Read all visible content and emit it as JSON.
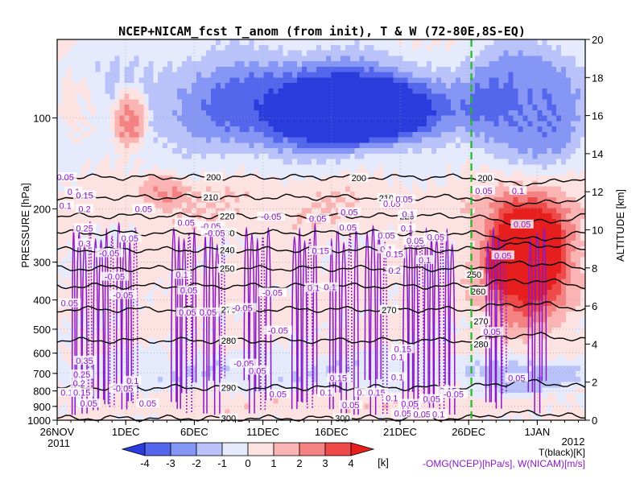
{
  "chart_data": {
    "type": "heatmap",
    "title": "NCEP+NICAM_fcst T_anom (from init), T & W  (72-80E,8S-EQ)",
    "x_axis": {
      "ticks": [
        "26NOV",
        "1DEC",
        "6DEC",
        "11DEC",
        "16DEC",
        "21DEC",
        "26DEC",
        "1JAN"
      ],
      "year_start": "2011",
      "year_end": "2012",
      "range": [
        "2011-11-26",
        "2012-01-03"
      ]
    },
    "y_left": {
      "label": "PRESSURE [hPa]",
      "ticks": [
        100,
        200,
        300,
        400,
        500,
        600,
        700,
        800,
        900,
        1000
      ],
      "scale": "log",
      "range": [
        1000,
        55
      ]
    },
    "y_right": {
      "label": "ALTITUDE [km]",
      "ticks": [
        0,
        2,
        4,
        6,
        8,
        10,
        12,
        14,
        16,
        18,
        20
      ],
      "range": [
        0,
        20
      ]
    },
    "forecast_start": "26DEC",
    "colorbar": {
      "levels": [
        -4,
        -3,
        -2,
        -1,
        0,
        1,
        2,
        3,
        4
      ],
      "unit": "[k]",
      "colors": [
        "#2a3cdc",
        "#5366ec",
        "#8696f4",
        "#b9c3fa",
        "#e6eafd",
        "#fde2e2",
        "#fab4b4",
        "#f58282",
        "#ee4a4a",
        "#e61e1e"
      ]
    },
    "legend": {
      "black": "T(black)[K]",
      "purple": "-OMG(NCEP)[hPa/s], W(NICAM)[m/s]"
    },
    "temperature_contours": [
      {
        "label": "200",
        "level_hPa": 157
      },
      {
        "label": "210",
        "level_hPa": 183
      },
      {
        "label": "220",
        "level_hPa": 211
      },
      {
        "label": "230",
        "level_hPa": 240
      },
      {
        "label": "240",
        "level_hPa": 273
      },
      {
        "label": "250",
        "level_hPa": 315
      },
      {
        "label": "260",
        "level_hPa": 360
      },
      {
        "label": "270",
        "level_hPa": 430
      },
      {
        "label": "280",
        "level_hPa": 545
      },
      {
        "label": "290",
        "level_hPa": 780
      },
      {
        "label": "300",
        "level_hPa": 985
      }
    ],
    "contour_labels": [
      {
        "text": "200",
        "x": 11.4,
        "p": 157
      },
      {
        "text": "200",
        "x": 22.0,
        "p": 158
      },
      {
        "text": "200",
        "x": 31.2,
        "p": 158
      },
      {
        "text": "210",
        "x": 11.2,
        "p": 183
      },
      {
        "text": "210",
        "x": 24.0,
        "p": 184
      },
      {
        "text": "220",
        "x": 12.4,
        "p": 211
      },
      {
        "text": "220",
        "x": 25.5,
        "p": 211
      },
      {
        "text": "230",
        "x": 12.4,
        "p": 240
      },
      {
        "text": "240",
        "x": 12.4,
        "p": 273
      },
      {
        "text": "250",
        "x": 12.4,
        "p": 315
      },
      {
        "text": "250",
        "x": 30.4,
        "p": 330
      },
      {
        "text": "260",
        "x": 30.7,
        "p": 375
      },
      {
        "text": "270",
        "x": 12.5,
        "p": 430
      },
      {
        "text": "270",
        "x": 24.2,
        "p": 432
      },
      {
        "text": "270",
        "x": 30.9,
        "p": 470
      },
      {
        "text": "280",
        "x": 12.5,
        "p": 545
      },
      {
        "text": "280",
        "x": 30.9,
        "p": 560
      },
      {
        "text": "290",
        "x": 12.5,
        "p": 780
      },
      {
        "text": "300",
        "x": 12.5,
        "p": 985
      },
      {
        "text": "300",
        "x": 20.8,
        "p": 985
      }
    ],
    "anomaly_regions": [
      {
        "x0": 0,
        "x1": 30,
        "p0": 55,
        "p1": 140,
        "v": -1.5
      },
      {
        "x0": 10,
        "x1": 30,
        "p0": 65,
        "p1": 130,
        "v": -2.5
      },
      {
        "x0": 16,
        "x1": 27,
        "p0": 75,
        "p1": 120,
        "v": -3.5
      },
      {
        "x0": 4,
        "x1": 6.5,
        "p0": 80,
        "p1": 125,
        "v": 3.2
      },
      {
        "x0": 0,
        "x1": 3.5,
        "p0": 70,
        "p1": 120,
        "v": 1.2
      },
      {
        "x0": 0,
        "x1": 30,
        "p0": 160,
        "p1": 240,
        "v": 0.8
      },
      {
        "x0": 6,
        "x1": 9.5,
        "p0": 150,
        "p1": 200,
        "v": 1.6
      },
      {
        "x0": 30,
        "x1": 38.5,
        "p0": 55,
        "p1": 150,
        "v": -3.0
      },
      {
        "x0": 30,
        "x1": 38.5,
        "p0": 150,
        "p1": 550,
        "v": 2.5
      },
      {
        "x0": 31.5,
        "x1": 37,
        "p0": 190,
        "p1": 420,
        "v": 3.6
      },
      {
        "x0": 0,
        "x1": 30,
        "p0": 240,
        "p1": 600,
        "v": 0.4
      },
      {
        "x0": 0,
        "x1": 30,
        "p0": 600,
        "p1": 780,
        "v": -0.8
      },
      {
        "x0": 30,
        "x1": 38.5,
        "p0": 620,
        "p1": 820,
        "v": -1.6
      },
      {
        "x0": 0,
        "x1": 38.5,
        "p0": 820,
        "p1": 1000,
        "v": 0.6
      }
    ],
    "vertical_motion_columns": [
      {
        "x": 1.2,
        "w": 2.8
      },
      {
        "x": 4.5,
        "w": 1.2
      },
      {
        "x": 8.5,
        "w": 1.5
      },
      {
        "x": 10.8,
        "w": 1.3
      },
      {
        "x": 13.8,
        "w": 1.6
      },
      {
        "x": 17.3,
        "w": 1.5
      },
      {
        "x": 20.0,
        "w": 1.8
      },
      {
        "x": 22.6,
        "w": 1.3
      },
      {
        "x": 25.4,
        "w": 3.4
      },
      {
        "x": 31.4,
        "w": 1.2
      },
      {
        "x": 34.5,
        "w": 1.0
      }
    ],
    "vertical_motion_labels": [
      {
        "text": "0.05",
        "x": 0.6,
        "p": 157
      },
      {
        "text": "0.1",
        "x": 1.2,
        "p": 175
      },
      {
        "text": "0.15",
        "x": 2.0,
        "p": 180
      },
      {
        "text": "0.1",
        "x": 0.6,
        "p": 195
      },
      {
        "text": "0.2",
        "x": 2.0,
        "p": 200
      },
      {
        "text": "0.25",
        "x": 2.0,
        "p": 232
      },
      {
        "text": "0.3",
        "x": 2.0,
        "p": 260
      },
      {
        "text": "0.05",
        "x": 0.9,
        "p": 410
      },
      {
        "text": "0.35",
        "x": 2.0,
        "p": 635
      },
      {
        "text": "0.25",
        "x": 1.8,
        "p": 705
      },
      {
        "text": "0.2",
        "x": 1.6,
        "p": 755
      },
      {
        "text": "0.1",
        "x": 0.7,
        "p": 810
      },
      {
        "text": "0.15",
        "x": 1.8,
        "p": 810
      },
      {
        "text": "0.05",
        "x": 2.3,
        "p": 880
      },
      {
        "text": "-0.05",
        "x": 3.8,
        "p": 280
      },
      {
        "text": "-0.05",
        "x": 4.2,
        "p": 335
      },
      {
        "text": "-0.05",
        "x": 4.8,
        "p": 385
      },
      {
        "text": "-0.05",
        "x": 4.8,
        "p": 785
      },
      {
        "text": "0.1",
        "x": 5.5,
        "p": 740
      },
      {
        "text": "0.05",
        "x": 6.6,
        "p": 880
      },
      {
        "text": "0.05",
        "x": 6.3,
        "p": 200
      },
      {
        "text": "0.05",
        "x": 5.3,
        "p": 250
      },
      {
        "text": "0.05",
        "x": 9.4,
        "p": 222
      },
      {
        "text": "-0.05",
        "x": 11.2,
        "p": 228
      },
      {
        "text": "-0.05",
        "x": 11.5,
        "p": 240
      },
      {
        "text": "0.1",
        "x": 9.1,
        "p": 330
      },
      {
        "text": "0.05",
        "x": 9.6,
        "p": 372
      },
      {
        "text": "0.05",
        "x": 9.5,
        "p": 440
      },
      {
        "text": "0.05",
        "x": 11.0,
        "p": 440
      },
      {
        "text": "-0.05",
        "x": 13.5,
        "p": 425
      },
      {
        "text": "-0.05",
        "x": 15.6,
        "p": 212
      },
      {
        "text": "-0.05",
        "x": 15.7,
        "p": 378
      },
      {
        "text": "-0.05",
        "x": 16.1,
        "p": 505
      },
      {
        "text": "-0.05",
        "x": 13.6,
        "p": 650
      },
      {
        "text": "0.05",
        "x": 14.6,
        "p": 685
      },
      {
        "text": "0.05",
        "x": 16.1,
        "p": 820
      },
      {
        "text": "0.05",
        "x": 19.0,
        "p": 215
      },
      {
        "text": "0.1",
        "x": 18.7,
        "p": 365
      },
      {
        "text": "0.05",
        "x": 21.3,
        "p": 205
      },
      {
        "text": "0.05",
        "x": 21.2,
        "p": 230
      },
      {
        "text": "0.15",
        "x": 19.2,
        "p": 275
      },
      {
        "text": "0.15",
        "x": 20.5,
        "p": 725
      },
      {
        "text": "0.1",
        "x": 19.6,
        "p": 810
      },
      {
        "text": "0.05",
        "x": 21.4,
        "p": 890
      },
      {
        "text": "0.1",
        "x": 22.3,
        "p": 810
      },
      {
        "text": "0.15",
        "x": 23.3,
        "p": 810
      },
      {
        "text": "0.1",
        "x": 24.4,
        "p": 845
      },
      {
        "text": "0.1",
        "x": 24.0,
        "p": 272
      },
      {
        "text": "0.15",
        "x": 24.6,
        "p": 282
      },
      {
        "text": "0.05",
        "x": 24.0,
        "p": 245
      },
      {
        "text": "0.2",
        "x": 24.6,
        "p": 320
      },
      {
        "text": "0.05",
        "x": 24.4,
        "p": 192
      },
      {
        "text": "0.05",
        "x": 25.3,
        "p": 186
      },
      {
        "text": "0.1",
        "x": 25.6,
        "p": 208
      },
      {
        "text": "0.1",
        "x": 25.5,
        "p": 232
      },
      {
        "text": "0.15",
        "x": 26.2,
        "p": 260
      },
      {
        "text": "0.05",
        "x": 26.1,
        "p": 255
      },
      {
        "text": "0.1",
        "x": 26.8,
        "p": 295
      },
      {
        "text": "0.15",
        "x": 25.2,
        "p": 582
      },
      {
        "text": "0.1",
        "x": 24.8,
        "p": 618
      },
      {
        "text": "0.1",
        "x": 24.8,
        "p": 720
      },
      {
        "text": "0.05",
        "x": 27.6,
        "p": 248
      },
      {
        "text": "0.05",
        "x": 27.3,
        "p": 850
      },
      {
        "text": "0.05",
        "x": 25.7,
        "p": 882
      },
      {
        "text": "0.05",
        "x": 25.2,
        "p": 950
      },
      {
        "text": "0.05",
        "x": 26.6,
        "p": 955
      },
      {
        "text": "0.1",
        "x": 27.8,
        "p": 955
      },
      {
        "text": "0.15",
        "x": 28.5,
        "p": 800
      },
      {
        "text": "-0.05",
        "x": 28.9,
        "p": 820
      },
      {
        "text": "0.1",
        "x": 19.9,
        "p": 363
      },
      {
        "text": "0.05",
        "x": 31.1,
        "p": 174
      },
      {
        "text": "0.1",
        "x": 33.6,
        "p": 174
      },
      {
        "text": "0.05",
        "x": 33.9,
        "p": 225
      },
      {
        "text": "0.05",
        "x": 32.5,
        "p": 285
      },
      {
        "text": "0.05",
        "x": 31.7,
        "p": 510
      },
      {
        "text": "0.05",
        "x": 33.5,
        "p": 725
      }
    ]
  }
}
